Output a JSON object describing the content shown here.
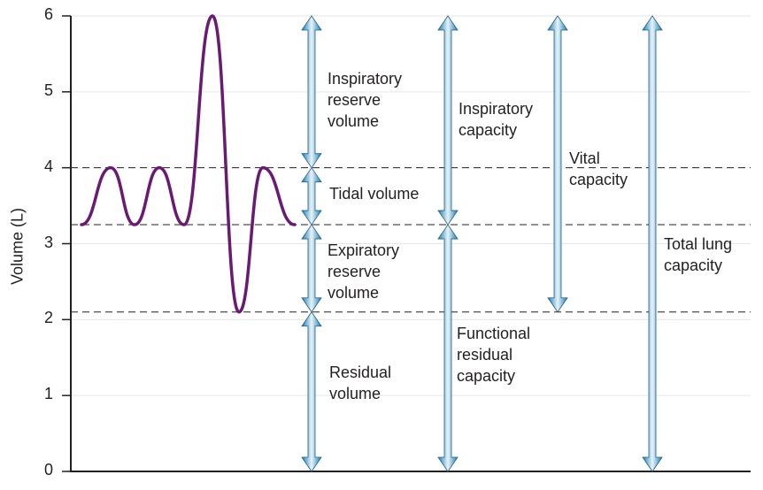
{
  "axis": {
    "ylabel": "Volume (L)",
    "ticks": [
      "0",
      "1",
      "2",
      "3",
      "4",
      "5",
      "6"
    ],
    "ymin": 0,
    "ymax": 6
  },
  "levels": {
    "max": 6,
    "tidal_top": 4,
    "tidal_bottom": 3.25,
    "expiratory_bottom": 2.1,
    "zero": 0
  },
  "colors": {
    "trace": "#6b1a73",
    "arrow": "#1a7fb5",
    "dash": "#231f20",
    "grid": "#e6e6e6"
  },
  "labels": {
    "irv": [
      "Inspiratory",
      "reserve",
      "volume"
    ],
    "tv": [
      "Tidal volume"
    ],
    "erv": [
      "Expiratory",
      "reserve",
      "volume"
    ],
    "rv": [
      "Residual",
      "volume"
    ],
    "ic": [
      "Inspiratory",
      "capacity"
    ],
    "frc": [
      "Functional",
      "residual",
      "capacity"
    ],
    "vc": [
      "Vital",
      "capacity"
    ],
    "tlc": [
      "Total lung",
      "capacity"
    ]
  }
}
